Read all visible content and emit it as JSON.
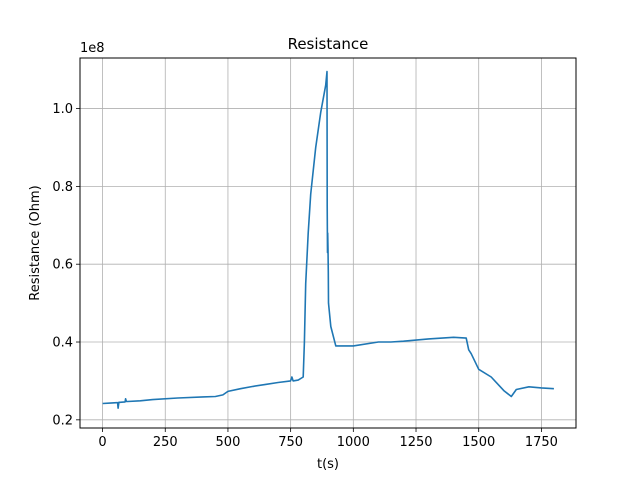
{
  "chart_data": {
    "type": "line",
    "title": "Resistance",
    "xlabel": "t(s)",
    "ylabel": "Resistance (Ohm)",
    "offset_text": "1e8",
    "xlim": [
      -90,
      1888
    ],
    "ylim": [
      17900000,
      113000000
    ],
    "grid": true,
    "x_ticks": [
      0,
      250,
      500,
      750,
      1000,
      1250,
      1500,
      1750
    ],
    "x_tick_labels": [
      "0",
      "250",
      "500",
      "750",
      "1000",
      "1250",
      "1500",
      "1750"
    ],
    "y_ticks": [
      20000000,
      40000000,
      60000000,
      80000000,
      100000000
    ],
    "y_tick_labels": [
      "0.2",
      "0.4",
      "0.6",
      "0.8",
      "1.0"
    ],
    "colors": {
      "line": "#1f77b4",
      "grid": "#b0b0b0"
    },
    "series": [
      {
        "x": [
          0,
          30,
          55,
          60,
          62,
          65,
          70,
          90,
          92,
          95,
          100,
          150,
          200,
          300,
          400,
          450,
          480,
          500,
          550,
          600,
          650,
          700,
          750,
          755,
          760,
          780,
          800,
          805,
          810,
          820,
          830,
          850,
          870,
          890,
          895,
          896,
          897,
          898,
          899,
          900,
          901,
          910,
          930,
          1000,
          1100,
          1150,
          1200,
          1300,
          1400,
          1450,
          1460,
          1470,
          1500,
          1550,
          1600,
          1630,
          1650,
          1700,
          1750,
          1800
        ],
        "y": [
          24200000,
          24300000,
          24400000,
          24400000,
          23000000,
          24500000,
          24500000,
          24600000,
          25400000,
          24700000,
          24700000,
          24900000,
          25200000,
          25600000,
          25900000,
          26000000,
          26400000,
          27300000,
          28000000,
          28600000,
          29100000,
          29600000,
          30000000,
          31000000,
          30000000,
          30200000,
          31000000,
          40000000,
          55000000,
          68000000,
          78000000,
          90000000,
          99000000,
          106000000,
          109500000,
          75000000,
          63000000,
          68000000,
          64000000,
          58000000,
          50000000,
          44000000,
          39000000,
          39000000,
          40000000,
          40000000,
          40200000,
          40800000,
          41200000,
          41000000,
          38000000,
          37000000,
          33000000,
          31000000,
          27500000,
          26000000,
          27800000,
          28500000,
          28200000,
          28000000
        ]
      }
    ]
  }
}
